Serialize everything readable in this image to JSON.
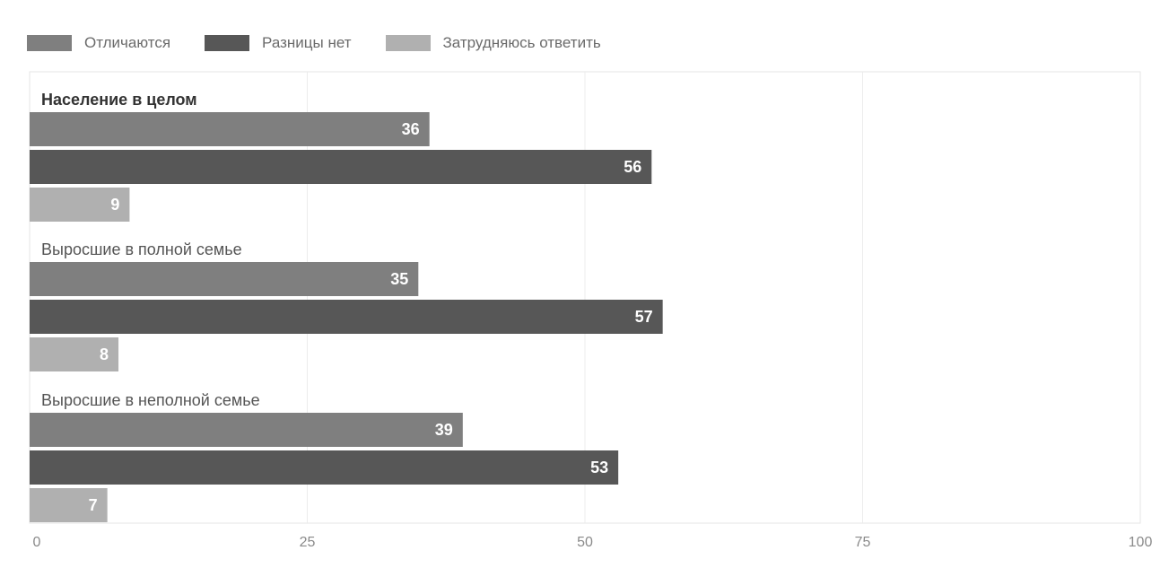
{
  "chart_data": {
    "type": "bar",
    "orientation": "horizontal",
    "categories": [
      "Население в целом",
      "Выросшие в полной семье",
      "Выросшие в неполной семье"
    ],
    "series": [
      {
        "name": "Отличаются",
        "values": [
          36,
          35,
          39
        ],
        "color": "#7f7f7f"
      },
      {
        "name": "Разницы нет",
        "values": [
          56,
          57,
          53
        ],
        "color": "#575757"
      },
      {
        "name": "Затрудняюсь ответить",
        "values": [
          9,
          8,
          7
        ],
        "color": "#b0b0b0"
      }
    ],
    "xlim": [
      0,
      100
    ],
    "xticks": [
      "0",
      "25",
      "50",
      "75",
      "100"
    ],
    "legend_position": "top-left",
    "grid": true,
    "title": "",
    "xlabel": "",
    "ylabel": ""
  }
}
